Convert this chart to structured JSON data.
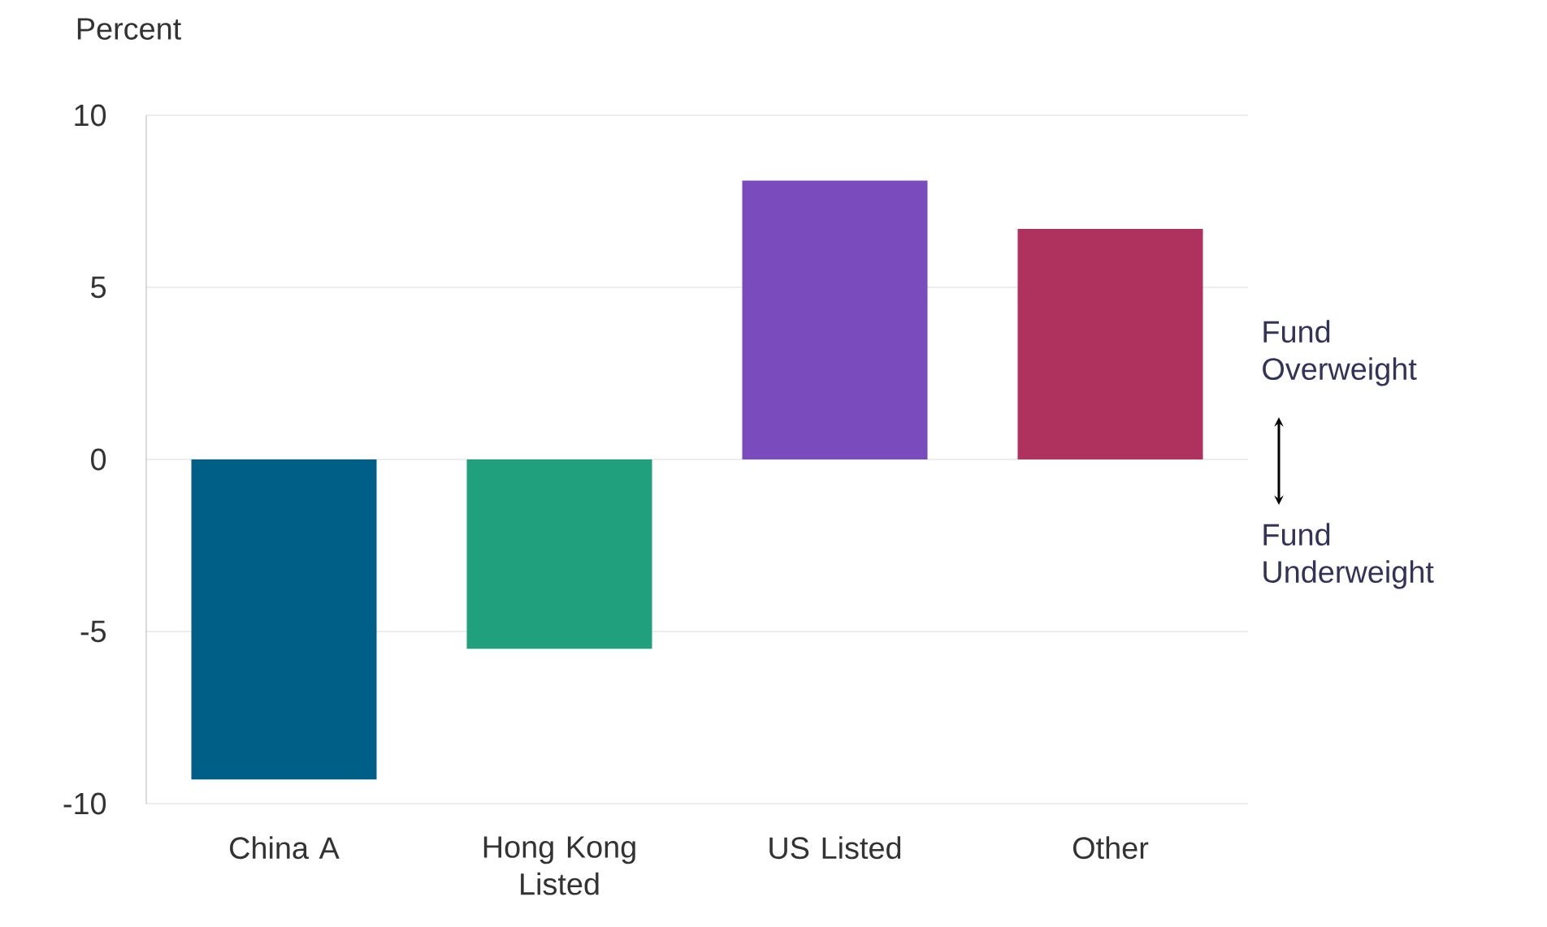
{
  "chart_data": {
    "type": "bar",
    "ylabel": "Percent",
    "categories": [
      "China A",
      "Hong Kong Listed",
      "US Listed",
      "Other"
    ],
    "values": [
      -9.3,
      -5.5,
      8.1,
      6.7
    ],
    "colors": [
      "#005f87",
      "#21a07d",
      "#7a4bbd",
      "#ae315e"
    ],
    "ylim": [
      -10,
      10
    ],
    "yticks": [
      -10,
      -5,
      0,
      5,
      10
    ],
    "grid": "y",
    "annotations": [
      "Fund Overweight",
      "Fund Underweight"
    ]
  }
}
